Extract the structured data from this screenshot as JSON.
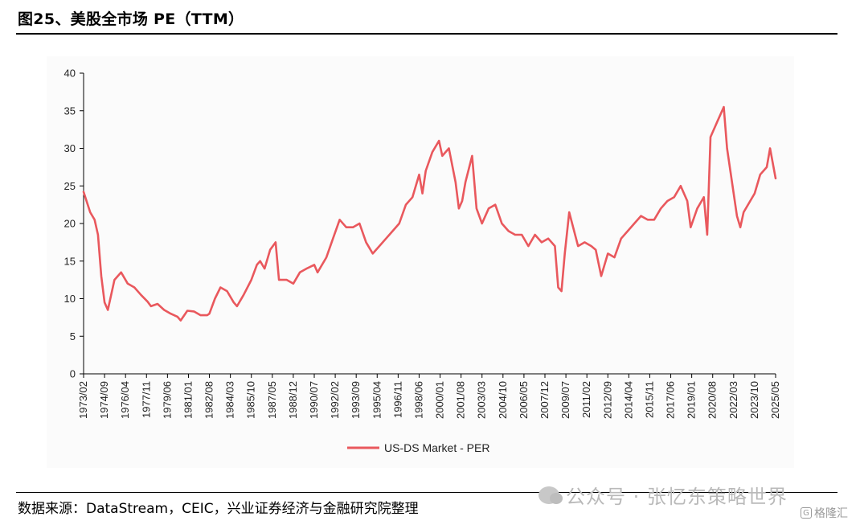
{
  "figure": {
    "title": "图25、美股全市场 PE（TTM）",
    "source": "数据来源：DataStream，CEIC，兴业证券经济与金融研究院整理",
    "watermark": "公众号 · 张忆东策略世界",
    "watermark2": "格隆汇",
    "watermark2_icon": "G"
  },
  "colors": {
    "series": "#e9585d",
    "axis": "#000000",
    "plot_background": "#fbfbfb"
  },
  "chart_data": {
    "type": "line",
    "title": "",
    "xlabel": "",
    "ylabel": "",
    "ylim": [
      0,
      40
    ],
    "yticks": [
      0,
      5,
      10,
      15,
      20,
      25,
      30,
      35,
      40
    ],
    "xlim": [
      "1973/02",
      "2025/05"
    ],
    "xticks": [
      "1973/02",
      "1974/09",
      "1976/04",
      "1977/11",
      "1979/06",
      "1981/01",
      "1982/08",
      "1984/03",
      "1985/10",
      "1987/05",
      "1988/12",
      "1990/07",
      "1992/02",
      "1993/09",
      "1995/04",
      "1996/11",
      "1998/06",
      "2000/01",
      "2001/08",
      "2003/03",
      "2004/10",
      "2006/05",
      "2007/12",
      "2009/07",
      "2011/02",
      "2012/09",
      "2014/04",
      "2015/11",
      "2017/06",
      "2019/01",
      "2020/08",
      "2022/03",
      "2023/10",
      "2025/05"
    ],
    "grid": false,
    "legend": "bottom-center",
    "series": [
      {
        "name": "US-DS Market - PER",
        "x": [
          "1973/02",
          "1973/08",
          "1973/12",
          "1974/03",
          "1974/06",
          "1974/09",
          "1974/12",
          "1975/06",
          "1975/12",
          "1976/06",
          "1976/12",
          "1977/06",
          "1977/12",
          "1978/03",
          "1978/09",
          "1979/03",
          "1979/09",
          "1980/03",
          "1980/06",
          "1980/12",
          "1981/06",
          "1981/12",
          "1982/06",
          "1982/08",
          "1983/01",
          "1983/06",
          "1983/12",
          "1984/06",
          "1984/09",
          "1985/03",
          "1985/10",
          "1986/03",
          "1986/06",
          "1986/10",
          "1987/03",
          "1987/08",
          "1987/11",
          "1988/06",
          "1988/12",
          "1989/06",
          "1989/12",
          "1990/07",
          "1990/10",
          "1991/06",
          "1991/12",
          "1992/06",
          "1992/12",
          "1993/06",
          "1993/12",
          "1994/06",
          "1994/12",
          "1995/06",
          "1995/12",
          "1996/06",
          "1996/12",
          "1997/06",
          "1997/12",
          "1998/06",
          "1998/09",
          "1998/12",
          "1999/06",
          "1999/12",
          "2000/03",
          "2000/09",
          "2001/03",
          "2001/06",
          "2001/09",
          "2001/12",
          "2002/06",
          "2002/10",
          "2003/03",
          "2003/09",
          "2004/03",
          "2004/09",
          "2005/03",
          "2005/09",
          "2006/03",
          "2006/09",
          "2007/03",
          "2007/09",
          "2008/03",
          "2008/09",
          "2008/12",
          "2009/03",
          "2009/06",
          "2009/10",
          "2010/06",
          "2010/12",
          "2011/06",
          "2011/10",
          "2012/03",
          "2012/09",
          "2013/03",
          "2013/09",
          "2014/03",
          "2014/09",
          "2015/03",
          "2015/09",
          "2016/03",
          "2016/09",
          "2017/03",
          "2017/09",
          "2018/03",
          "2018/09",
          "2018/12",
          "2019/06",
          "2019/12",
          "2020/03",
          "2020/06",
          "2020/12",
          "2021/06",
          "2021/09",
          "2021/12",
          "2022/06",
          "2022/09",
          "2022/12",
          "2023/06",
          "2023/10",
          "2024/03",
          "2024/09",
          "2024/12",
          "2025/05"
        ],
        "values": [
          24.2,
          21.5,
          20.5,
          18.5,
          13.0,
          9.5,
          8.5,
          12.5,
          13.5,
          12.0,
          11.5,
          10.5,
          9.6,
          9.0,
          9.3,
          8.5,
          8.0,
          7.6,
          7.1,
          8.4,
          8.3,
          7.8,
          7.8,
          8.0,
          10.0,
          11.5,
          11.0,
          9.5,
          9.0,
          10.5,
          12.5,
          14.5,
          15.0,
          14.0,
          16.5,
          17.5,
          12.5,
          12.5,
          12.0,
          13.5,
          14.0,
          14.5,
          13.5,
          15.5,
          18.0,
          20.5,
          19.5,
          19.5,
          20.0,
          17.5,
          16.0,
          17.0,
          18.0,
          19.0,
          20.0,
          22.5,
          23.5,
          26.5,
          24.0,
          27.0,
          29.5,
          31.0,
          29.0,
          30.0,
          25.5,
          22.0,
          23.0,
          25.5,
          29.0,
          22.0,
          20.0,
          22.0,
          22.5,
          20.0,
          19.0,
          18.5,
          18.5,
          17.0,
          18.5,
          17.5,
          18.0,
          17.0,
          11.5,
          11.0,
          16.0,
          21.5,
          17.0,
          17.5,
          17.0,
          16.5,
          13.0,
          16.0,
          15.5,
          18.0,
          19.0,
          20.0,
          21.0,
          20.5,
          20.5,
          22.0,
          23.0,
          23.5,
          25.0,
          23.0,
          19.5,
          22.0,
          23.5,
          18.5,
          31.5,
          33.5,
          35.5,
          30.0,
          27.0,
          21.0,
          19.5,
          21.5,
          23.0,
          24.0,
          26.5,
          27.5,
          30.0,
          26.0
        ]
      }
    ]
  }
}
